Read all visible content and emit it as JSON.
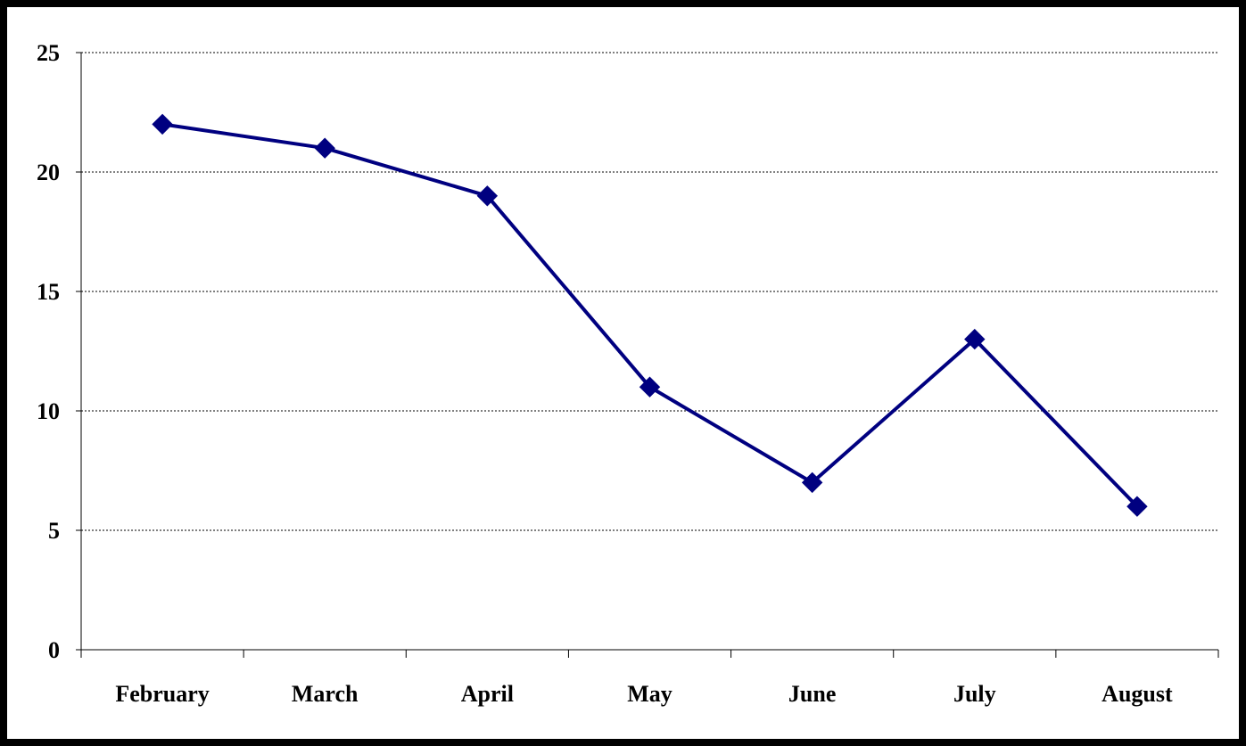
{
  "chart_data": {
    "type": "line",
    "title": "",
    "xlabel": "",
    "ylabel": "",
    "categories": [
      "February",
      "March",
      "April",
      "May",
      "June",
      "July",
      "August"
    ],
    "series": [
      {
        "values": [
          22,
          21,
          19,
          11,
          7,
          13,
          6
        ],
        "color": "#000080",
        "marker": "diamond"
      }
    ],
    "ylim": [
      0,
      25
    ],
    "yticks": [
      0,
      5,
      10,
      15,
      20,
      25
    ],
    "ytick_labels": [
      "0",
      "5",
      "10",
      "15",
      "20",
      "25"
    ],
    "grid": "horizontal-dotted",
    "legend": "none",
    "background": "#ffffff"
  }
}
